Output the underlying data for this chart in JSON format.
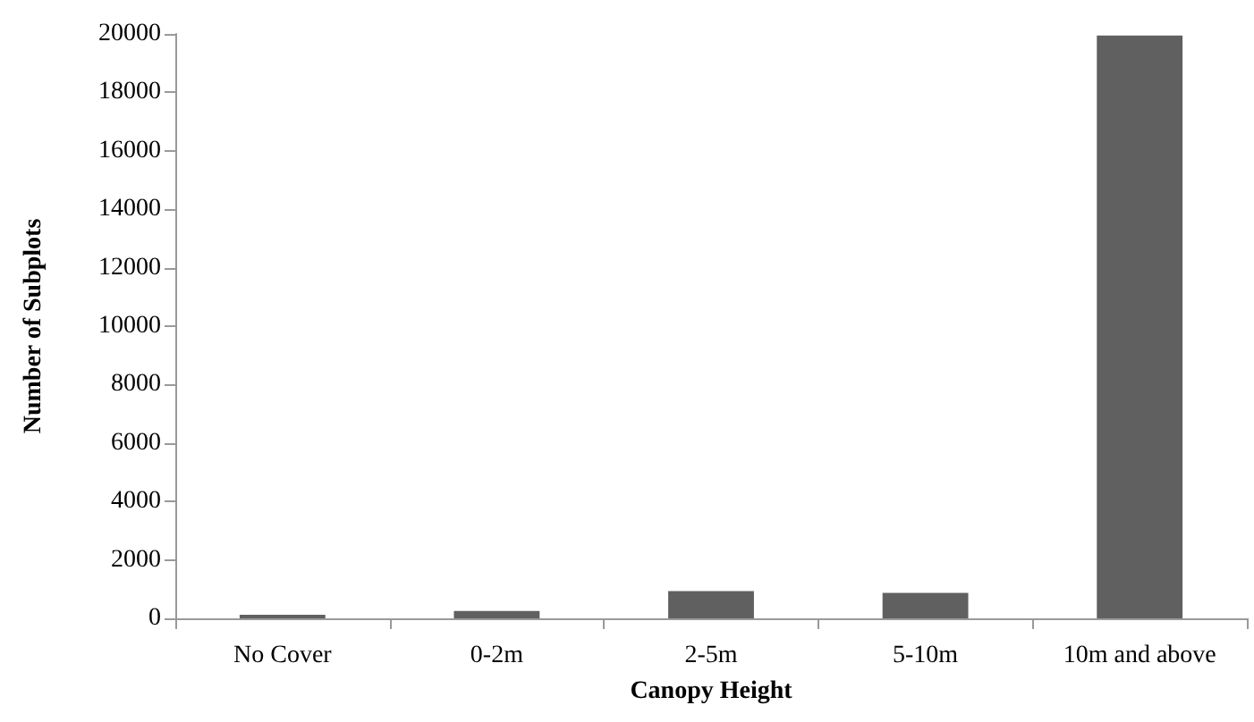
{
  "chart_data": {
    "type": "bar",
    "xlabel": "Canopy Height",
    "ylabel": "Number of Subplots",
    "categories": [
      "No Cover",
      "0-2m",
      "2-5m",
      "5-10m",
      "10m and above"
    ],
    "values": [
      120,
      250,
      930,
      870,
      19950
    ],
    "color": "#606060",
    "ylim": [
      0,
      20000
    ],
    "yticks": [
      0,
      2000,
      4000,
      6000,
      8000,
      10000,
      12000,
      14000,
      16000,
      18000,
      20000
    ],
    "grid": false
  }
}
